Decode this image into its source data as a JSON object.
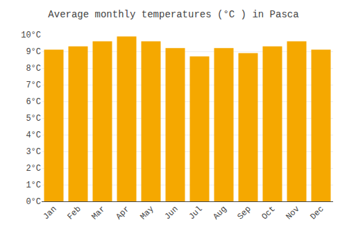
{
  "chart_data": {
    "type": "bar",
    "title": "Average monthly temperatures (°C ) in Pasca",
    "categories": [
      "Jan",
      "Feb",
      "Mar",
      "Apr",
      "May",
      "Jun",
      "Jul",
      "Aug",
      "Sep",
      "Oct",
      "Nov",
      "Dec"
    ],
    "values": [
      9.1,
      9.3,
      9.6,
      9.9,
      9.6,
      9.2,
      8.7,
      9.2,
      8.9,
      9.3,
      9.6,
      9.1
    ],
    "color": "#F5A800",
    "ylim": [
      0,
      10
    ],
    "yticks": [
      {
        "value": 0,
        "label": "0°C"
      },
      {
        "value": 1,
        "label": "1°C"
      },
      {
        "value": 2,
        "label": "2°C"
      },
      {
        "value": 3,
        "label": "3°C"
      },
      {
        "value": 4,
        "label": "4°C"
      },
      {
        "value": 5,
        "label": "5°C"
      },
      {
        "value": 6,
        "label": "6°C"
      },
      {
        "value": 7,
        "label": "7°C"
      },
      {
        "value": 8,
        "label": "8°C"
      },
      {
        "value": 9,
        "label": "9°C"
      },
      {
        "value": 10,
        "label": "10°C"
      }
    ],
    "grid": true
  }
}
